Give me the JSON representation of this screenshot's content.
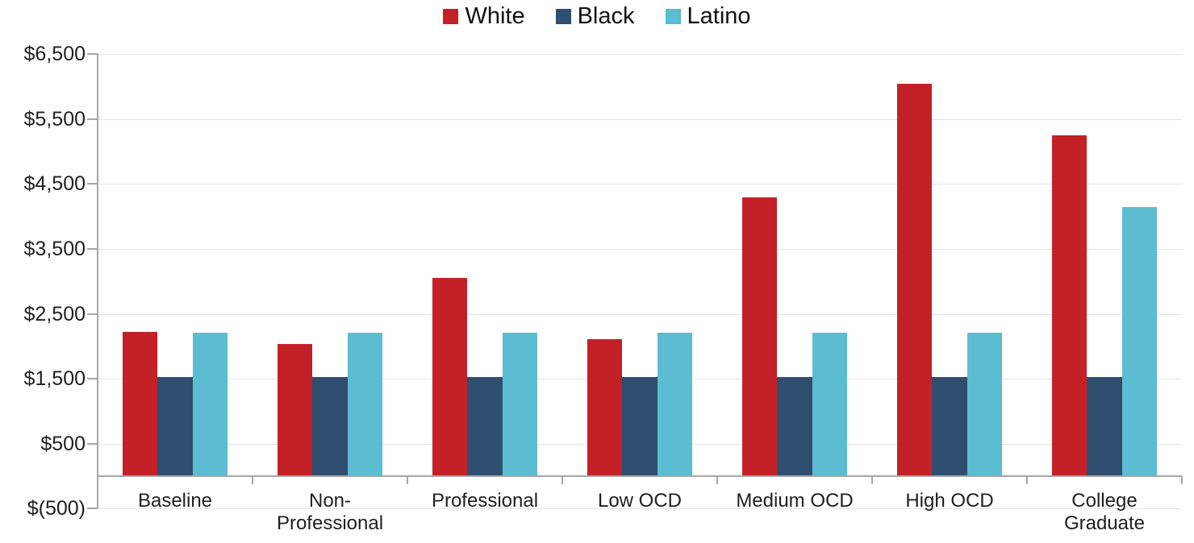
{
  "chart_data": {
    "type": "bar",
    "title": "",
    "legend_position": "top",
    "grid": "horizontal",
    "bar_baseline_value": 0,
    "categories": [
      "Baseline",
      "Non-Professional",
      "Professional",
      "Low OCD",
      "Medium OCD",
      "High OCD",
      "College Graduate"
    ],
    "category_label_lines": [
      [
        "Baseline"
      ],
      [
        "Non-",
        "Professional"
      ],
      [
        "Professional"
      ],
      [
        "Low OCD"
      ],
      [
        "Medium OCD"
      ],
      [
        "High OCD"
      ],
      [
        "College",
        "Graduate"
      ]
    ],
    "series": [
      {
        "name": "White",
        "color": "#c32127",
        "values": [
          2220,
          2040,
          3060,
          2110,
          4300,
          6050,
          5250
        ]
      },
      {
        "name": "Black",
        "color": "#2f4e70",
        "values": [
          1530,
          1530,
          1530,
          1530,
          1530,
          1530,
          1530
        ]
      },
      {
        "name": "Latino",
        "color": "#5bbcd2",
        "values": [
          2210,
          2210,
          2210,
          2210,
          2210,
          2210,
          4150
        ]
      }
    ],
    "y_axis": {
      "min": -500,
      "max": 6500,
      "step": 1000,
      "tick_labels_top_to_bottom": [
        "$6,500",
        "$5,500",
        "$4,500",
        "$3,500",
        "$2,500",
        "$1,500",
        "$500",
        "$(500)"
      ]
    },
    "colors": {
      "background": "#ffffff",
      "gridline": "#e3e3e3",
      "axis": "#a6a6a6",
      "text": "#1f1f1f"
    }
  }
}
